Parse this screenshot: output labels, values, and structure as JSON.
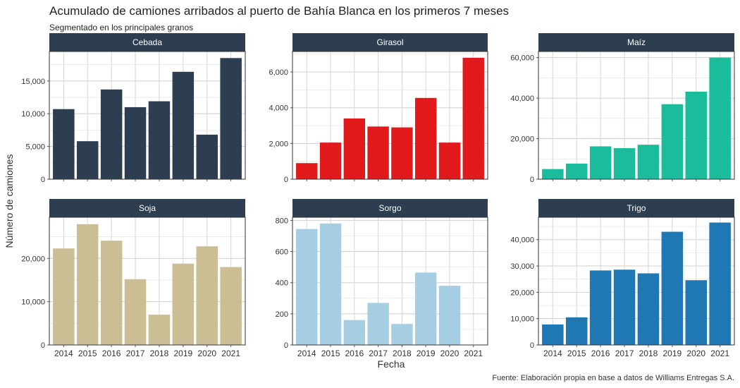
{
  "title": "Acumulado de camiones arribados al puerto de Bahía Blanca en los primeros 7 meses",
  "subtitle": "Segmentado en los principales granos",
  "caption": "Fuente: Elaboración propia en base a datos de Williams Entregas S.A.",
  "chart_data": {
    "type": "bar",
    "facet": "wrap 2x3",
    "xlabel": "Fecha",
    "ylabel": "Número de camiones",
    "categories": [
      "2014",
      "2015",
      "2016",
      "2017",
      "2018",
      "2019",
      "2020",
      "2021"
    ],
    "grid": true,
    "legend": "none",
    "panels": [
      {
        "name": "Cebada",
        "color": "#2c3e50",
        "ylim": [
          0,
          19500
        ],
        "yticks": [
          0,
          5000,
          10000,
          15000
        ],
        "ytick_labels": [
          "0",
          "5,000",
          "10,000",
          "15,000"
        ],
        "values": [
          10700,
          5800,
          13700,
          11000,
          11900,
          16400,
          6800,
          18500
        ]
      },
      {
        "name": "Girasol",
        "color": "#e31a1c",
        "ylim": [
          0,
          7150
        ],
        "yticks": [
          0,
          2000,
          4000,
          6000
        ],
        "ytick_labels": [
          "0",
          "2,000",
          "4,000",
          "6,000"
        ],
        "values": [
          900,
          2050,
          3400,
          2950,
          2900,
          4550,
          2050,
          6800
        ]
      },
      {
        "name": "Maíz",
        "color": "#1abc9c",
        "ylim": [
          0,
          63000
        ],
        "yticks": [
          0,
          20000,
          40000,
          60000
        ],
        "ytick_labels": [
          "0",
          "20,000",
          "40,000",
          "60,000"
        ],
        "values": [
          5000,
          7700,
          16200,
          15300,
          17000,
          37000,
          43200,
          60000
        ]
      },
      {
        "name": "Soja",
        "color": "#cbbe94",
        "ylim": [
          0,
          29500
        ],
        "yticks": [
          0,
          10000,
          20000
        ],
        "ytick_labels": [
          "0",
          "10,000",
          "20,000"
        ],
        "values": [
          22300,
          27900,
          24100,
          15200,
          7000,
          18800,
          22800,
          18000
        ]
      },
      {
        "name": "Sorgo",
        "color": "#a6cee3",
        "ylim": [
          0,
          820
        ],
        "yticks": [
          0,
          200,
          400,
          600,
          800
        ],
        "ytick_labels": [
          "0",
          "200",
          "400",
          "600",
          "800"
        ],
        "values": [
          745,
          780,
          160,
          270,
          135,
          465,
          380,
          0
        ]
      },
      {
        "name": "Trigo",
        "color": "#1f78b4",
        "ylim": [
          0,
          48500
        ],
        "yticks": [
          0,
          10000,
          20000,
          30000,
          40000
        ],
        "ytick_labels": [
          "0",
          "10,000",
          "20,000",
          "30,000",
          "40,000"
        ],
        "values": [
          7800,
          10500,
          28300,
          28600,
          27200,
          43000,
          24600,
          46500
        ]
      }
    ]
  }
}
